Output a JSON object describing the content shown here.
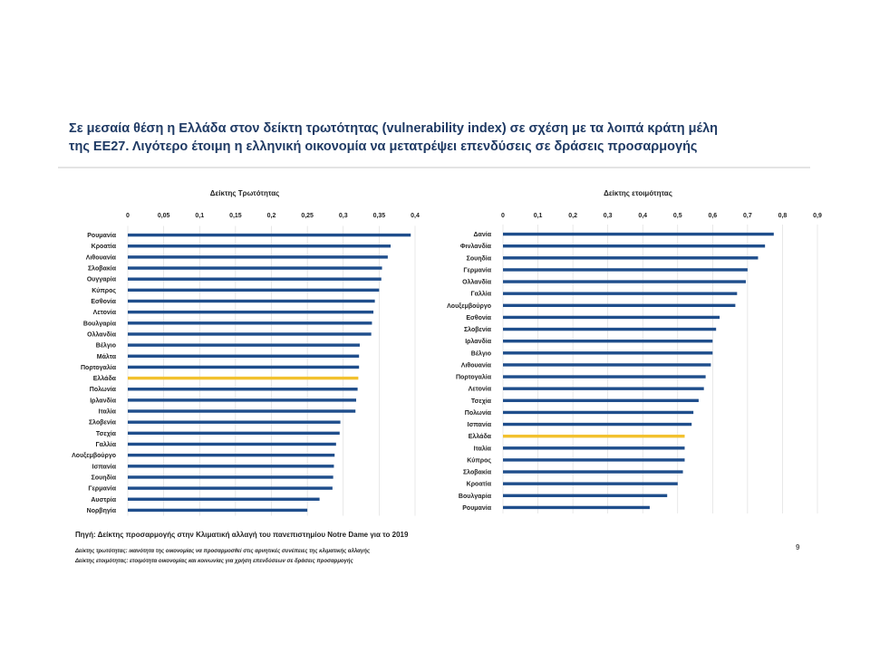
{
  "slide": {
    "title_line1": "Σε μεσαία θέση η Ελλάδα στον δείκτη τρωτότητας (vulnerability index) σε σχέση με τα λοιπά κράτη μέλη",
    "title_line2": "της ΕΕ27. Λιγότερο έτοιμη η ελληνική οικονομία να μετατρέψει επενδύσεις σε δράσεις προσαρμογής",
    "source": "Πηγή: Δείκτης προσαρμογής στην Κλιματική αλλαγή του πανεπιστημίου Notre Dame για το 2019",
    "note_vulnerability": "Δείκτης τρωτότητας: ικανότητα της οικονομίας να προσαρμοσθεί στις αρνητικές συνέπειες της κλιματικής αλλαγής",
    "note_readiness": "Δείκτης ετοιμότητας: ετοιμότητα οικονομίας και κοινωνίας για χρήση επενδύσεων σε δράσεις προσαρμογής",
    "page_number": "9"
  },
  "colors": {
    "bar": "#1f4e8c",
    "highlight": "#f2c12e",
    "grid": "#d9d9d9"
  },
  "chart_data": [
    {
      "type": "bar",
      "orientation": "horizontal",
      "title": "Δείκτης Τρωτότητας",
      "xlim": [
        0,
        0.4
      ],
      "xticks": [
        "0",
        "0,05",
        "0,1",
        "0,15",
        "0,2",
        "0,25",
        "0,3",
        "0,35",
        "0,4"
      ],
      "axis_position": "top",
      "grid": true,
      "highlight_category": "Ελλάδα",
      "categories": [
        "Ρουμανία",
        "Κροατία",
        "Λιθουανία",
        "Σλοβακία",
        "Ουγγαρία",
        "Κύπρος",
        "Εσθονία",
        "Λετονία",
        "Βουλγαρία",
        "Ολλανδία",
        "Βέλγιο",
        "Μάλτα",
        "Πορτογαλία",
        "Ελλάδα",
        "Πολωνία",
        "Ιρλανδία",
        "Ιταλία",
        "Σλοβενία",
        "Τσεχία",
        "Γαλλία",
        "Λουξεμβούργο",
        "Ισπανία",
        "Σουηδία",
        "Γερμανία",
        "Αυστρία",
        "Νορβηγία"
      ],
      "values": [
        0.394,
        0.366,
        0.362,
        0.354,
        0.353,
        0.35,
        0.344,
        0.342,
        0.34,
        0.339,
        0.323,
        0.322,
        0.322,
        0.321,
        0.32,
        0.318,
        0.317,
        0.296,
        0.295,
        0.29,
        0.288,
        0.287,
        0.286,
        0.285,
        0.267,
        0.25
      ]
    },
    {
      "type": "bar",
      "orientation": "horizontal",
      "title": "Δείκτης ετοιμότητας",
      "xlim": [
        0,
        0.9
      ],
      "xticks": [
        "0",
        "0,1",
        "0,2",
        "0,3",
        "0,4",
        "0,5",
        "0,6",
        "0,7",
        "0,8",
        "0,9"
      ],
      "axis_position": "top",
      "grid": true,
      "highlight_category": "Ελλάδα",
      "categories": [
        "Δανία",
        "Φινλανδία",
        "Σουηδία",
        "Γερμανία",
        "Ολλανδία",
        "Γαλλία",
        "Λουξεμβούργο",
        "Εσθονία",
        "Σλοβενία",
        "Ιρλανδία",
        "Βέλγιο",
        "Λιθουανία",
        "Πορτογαλία",
        "Λετονία",
        "Τσεχία",
        "Πολωνία",
        "Ισπανία",
        "Ελλάδα",
        "Ιταλία",
        "Κύπρος",
        "Σλοβακία",
        "Κροατία",
        "Βουλγαρία",
        "Ρουμανία"
      ],
      "values": [
        0.775,
        0.75,
        0.73,
        0.7,
        0.695,
        0.67,
        0.665,
        0.62,
        0.61,
        0.6,
        0.6,
        0.595,
        0.58,
        0.575,
        0.56,
        0.545,
        0.54,
        0.52,
        0.52,
        0.52,
        0.515,
        0.5,
        0.47,
        0.42
      ]
    }
  ]
}
